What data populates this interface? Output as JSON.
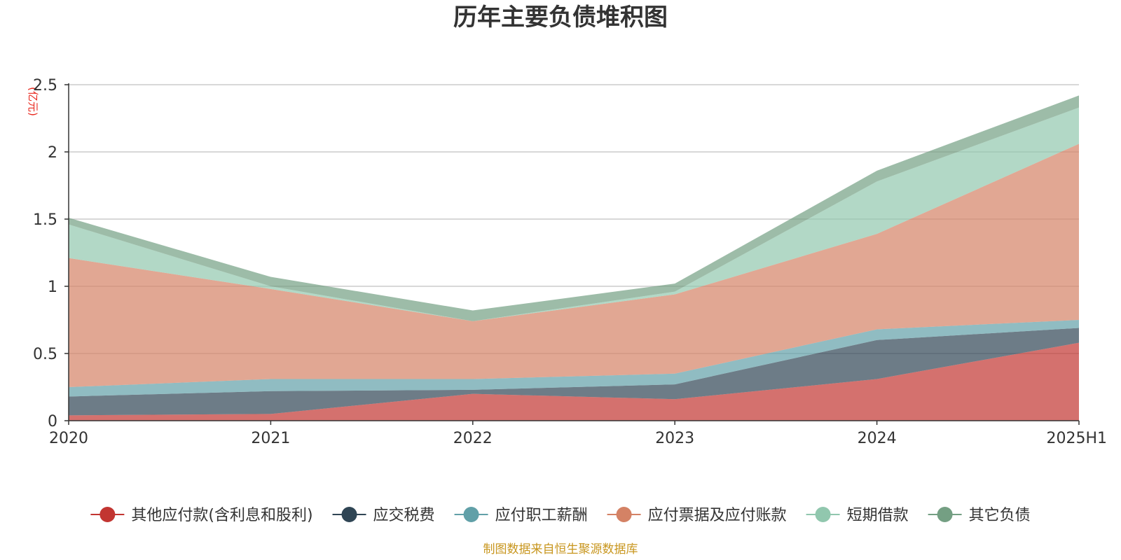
{
  "chart_data": {
    "type": "area",
    "stacked": true,
    "title": "历年主要负债堆积图",
    "unit_label": "(亿元)",
    "source": "制图数据来自恒生聚源数据库",
    "categories": [
      "2020",
      "2021",
      "2022",
      "2023",
      "2024",
      "2025H1"
    ],
    "ylim": [
      0,
      2.5
    ],
    "yticks": [
      0,
      0.5,
      1,
      1.5,
      2,
      2.5
    ],
    "ytick_labels": [
      "0",
      "0.5",
      "1",
      "1.5",
      "2",
      "2.5"
    ],
    "grid": true,
    "legend_position": "bottom",
    "series": [
      {
        "name": "其他应付款(含利息和股利)",
        "color": "#c23531",
        "values": [
          0.04,
          0.05,
          0.2,
          0.16,
          0.31,
          0.58
        ]
      },
      {
        "name": "应交税费",
        "color": "#2f4554",
        "values": [
          0.14,
          0.17,
          0.03,
          0.11,
          0.29,
          0.11
        ]
      },
      {
        "name": "应付职工薪酬",
        "color": "#61a0a8",
        "values": [
          0.07,
          0.09,
          0.08,
          0.08,
          0.08,
          0.06
        ]
      },
      {
        "name": "应付票据及应付账款",
        "color": "#d48265",
        "values": [
          0.96,
          0.67,
          0.43,
          0.59,
          0.71,
          1.31
        ]
      },
      {
        "name": "短期借款",
        "color": "#91c7ae",
        "values": [
          0.25,
          0.02,
          0.0,
          0.02,
          0.39,
          0.27
        ]
      },
      {
        "name": "其它负债",
        "color": "#749f83",
        "values": [
          0.05,
          0.07,
          0.08,
          0.06,
          0.08,
          0.09
        ]
      }
    ]
  }
}
